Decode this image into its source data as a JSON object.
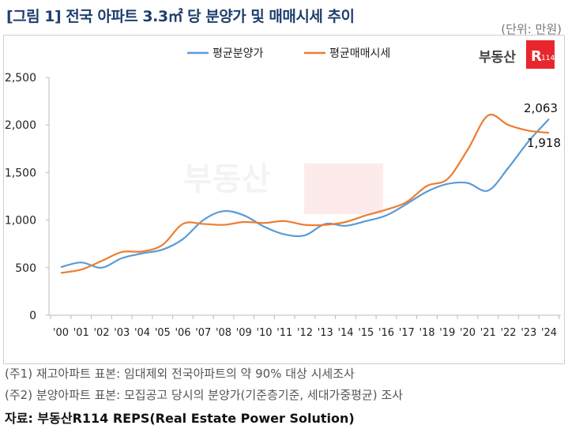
{
  "title": "[그림 1] 전국 아파트 3.3㎡ 당 분양가 및 매매시세 추이",
  "unit": "(단위: 만원)",
  "logo": "부동산R114",
  "notes": [
    "(주1) 재고아파트 표본: 임대제외 전국아파트의 약 90% 대상 시세조사",
    "(주2) 분양아파트 표본: 모집공고 당시의 분양가(기준층기준, 세대가중평균) 조사"
  ],
  "source": "자료: 부동산R114 REPS(Real Estate Power Solution)",
  "colors": {
    "blue": "#5b9bd5",
    "orange": "#ed7d31",
    "title": "#1f3f6e",
    "logo": "#e8262d"
  },
  "chart_data": {
    "type": "line",
    "title": "",
    "categories": [
      "'00",
      "'01",
      "'02",
      "'03",
      "'04",
      "'05",
      "'06",
      "'07",
      "'08",
      "'09",
      "'10",
      "'11",
      "'12",
      "'13",
      "'14",
      "'15",
      "'16",
      "'17",
      "'18",
      "'19",
      "'20",
      "'21",
      "'22",
      "'23",
      "'24"
    ],
    "yticks": [
      "0",
      "500",
      "1,000",
      "1,500",
      "2,000",
      "2,500"
    ],
    "ylim": [
      0,
      2500
    ],
    "grid": false,
    "legend": "top",
    "smooth": true,
    "series": [
      {
        "name": "평균분양가",
        "color": "#5b9bd5",
        "values": [
          505,
          555,
          500,
          600,
          650,
          690,
          800,
          1000,
          1095,
          1050,
          930,
          850,
          840,
          960,
          940,
          990,
          1050,
          1170,
          1300,
          1380,
          1390,
          1310,
          1550,
          1830,
          2063
        ]
      },
      {
        "name": "평균매매시세",
        "color": "#ed7d31",
        "values": [
          445,
          480,
          570,
          665,
          670,
          740,
          960,
          960,
          950,
          980,
          970,
          990,
          950,
          950,
          980,
          1050,
          1110,
          1190,
          1360,
          1430,
          1740,
          2100,
          2000,
          1940,
          1918
        ]
      }
    ],
    "data_labels": [
      "2,063",
      "1,918"
    ]
  }
}
